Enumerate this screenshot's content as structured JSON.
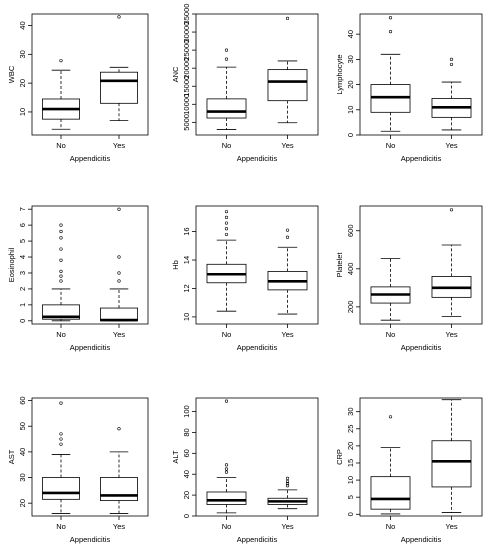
{
  "chart_data": [
    {
      "type": "box",
      "xlabel": "Appendicitis",
      "ylabel": "WBC",
      "categories": [
        "No",
        "Yes"
      ],
      "ylim": [
        2,
        44
      ],
      "yticks": [
        10,
        20,
        30,
        40
      ],
      "boxes": [
        {
          "min": 4,
          "q1": 7.5,
          "median": 11,
          "q3": 14.5,
          "max": 24.5,
          "outliers": [
            27.8
          ]
        },
        {
          "min": 7,
          "q1": 13,
          "median": 20.8,
          "q3": 23.8,
          "max": 25.5,
          "outliers": [
            43
          ]
        }
      ]
    },
    {
      "type": "box",
      "xlabel": "Appendicitis",
      "ylabel": "ANC",
      "categories": [
        "No",
        "Yes"
      ],
      "ylim": [
        1500,
        35000
      ],
      "yticks": [
        5000,
        10000,
        15000,
        20000,
        25000,
        30000,
        35000
      ],
      "boxes": [
        {
          "min": 3000,
          "q1": 6200,
          "median": 8000,
          "q3": 11500,
          "max": 20300,
          "outliers": [
            22500,
            25000
          ]
        },
        {
          "min": 4900,
          "q1": 11000,
          "median": 16300,
          "q3": 19600,
          "max": 22000,
          "outliers": [
            33800
          ]
        }
      ]
    },
    {
      "type": "box",
      "xlabel": "Appendicitis",
      "ylabel": "Lymphocyte",
      "categories": [
        "No",
        "Yes"
      ],
      "ylim": [
        0,
        48
      ],
      "yticks": [
        0,
        10,
        20,
        30,
        40
      ],
      "boxes": [
        {
          "min": 1.5,
          "q1": 9,
          "median": 15,
          "q3": 20,
          "max": 32,
          "outliers": [
            41,
            46.5
          ]
        },
        {
          "min": 2,
          "q1": 7,
          "median": 11,
          "q3": 14.5,
          "max": 21,
          "outliers": [
            28,
            30
          ]
        }
      ]
    },
    {
      "type": "box",
      "xlabel": "Appendicitis",
      "ylabel": "Eosinophil",
      "categories": [
        "No",
        "Yes"
      ],
      "ylim": [
        -0.2,
        7.2
      ],
      "yticks": [
        0,
        1,
        2,
        3,
        4,
        5,
        6,
        7
      ],
      "boxes": [
        {
          "min": 0,
          "q1": 0.1,
          "median": 0.25,
          "q3": 1,
          "max": 2,
          "outliers": [
            2.5,
            2.8,
            3.1,
            3.8,
            4.5,
            5.2,
            5.6,
            6
          ]
        },
        {
          "min": 0,
          "q1": 0,
          "median": 0.05,
          "q3": 0.8,
          "max": 2,
          "outliers": [
            2.5,
            3,
            4,
            7
          ]
        }
      ]
    },
    {
      "type": "box",
      "xlabel": "Appendicitis",
      "ylabel": "Hb",
      "categories": [
        "No",
        "Yes"
      ],
      "ylim": [
        9.5,
        17.8
      ],
      "yticks": [
        10,
        12,
        14,
        16
      ],
      "boxes": [
        {
          "min": 10.4,
          "q1": 12.4,
          "median": 13,
          "q3": 13.7,
          "max": 15.4,
          "outliers": [
            15.8,
            16.2,
            16.6,
            17,
            17.4
          ]
        },
        {
          "min": 10.2,
          "q1": 11.9,
          "median": 12.5,
          "q3": 13.2,
          "max": 14.9,
          "outliers": [
            15.6,
            16.1
          ]
        }
      ]
    },
    {
      "type": "box",
      "xlabel": "Appendicitis",
      "ylabel": "Platelet",
      "categories": [
        "No",
        "Yes"
      ],
      "ylim": [
        110,
        730
      ],
      "yticks": [
        200,
        400,
        600
      ],
      "boxes": [
        {
          "min": 130,
          "q1": 220,
          "median": 265,
          "q3": 305,
          "max": 455,
          "outliers": []
        },
        {
          "min": 150,
          "q1": 250,
          "median": 300,
          "q3": 360,
          "max": 525,
          "outliers": [
            710
          ]
        }
      ]
    },
    {
      "type": "box",
      "xlabel": "Appendicitis",
      "ylabel": "AST",
      "categories": [
        "No",
        "Yes"
      ],
      "ylim": [
        15,
        61
      ],
      "yticks": [
        20,
        30,
        40,
        50,
        60
      ],
      "boxes": [
        {
          "min": 16,
          "q1": 21.5,
          "median": 24,
          "q3": 30,
          "max": 39,
          "outliers": [
            43,
            45,
            47,
            59
          ]
        },
        {
          "min": 16,
          "q1": 21,
          "median": 23,
          "q3": 30,
          "max": 40,
          "outliers": [
            49
          ]
        }
      ]
    },
    {
      "type": "box",
      "xlabel": "Appendicitis",
      "ylabel": "ALT",
      "categories": [
        "No",
        "Yes"
      ],
      "ylim": [
        0,
        113
      ],
      "yticks": [
        0,
        20,
        40,
        60,
        80,
        100
      ],
      "boxes": [
        {
          "min": 3,
          "q1": 11,
          "median": 15,
          "q3": 23,
          "max": 37,
          "outliers": [
            42,
            45,
            49,
            110
          ]
        },
        {
          "min": 7,
          "q1": 11,
          "median": 14,
          "q3": 17,
          "max": 25,
          "outliers": [
            29,
            31,
            33,
            36
          ]
        }
      ]
    },
    {
      "type": "box",
      "xlabel": "Appendicitis",
      "ylabel": "CRP",
      "categories": [
        "No",
        "Yes"
      ],
      "ylim": [
        -0.5,
        34
      ],
      "yticks": [
        0,
        5,
        10,
        15,
        20,
        25,
        30
      ],
      "boxes": [
        {
          "min": 0.1,
          "q1": 1.5,
          "median": 4.5,
          "q3": 11,
          "max": 19.5,
          "outliers": [
            28.5
          ]
        },
        {
          "min": 0.5,
          "q1": 8,
          "median": 15.5,
          "q3": 21.5,
          "max": 33.5,
          "outliers": []
        }
      ]
    }
  ]
}
